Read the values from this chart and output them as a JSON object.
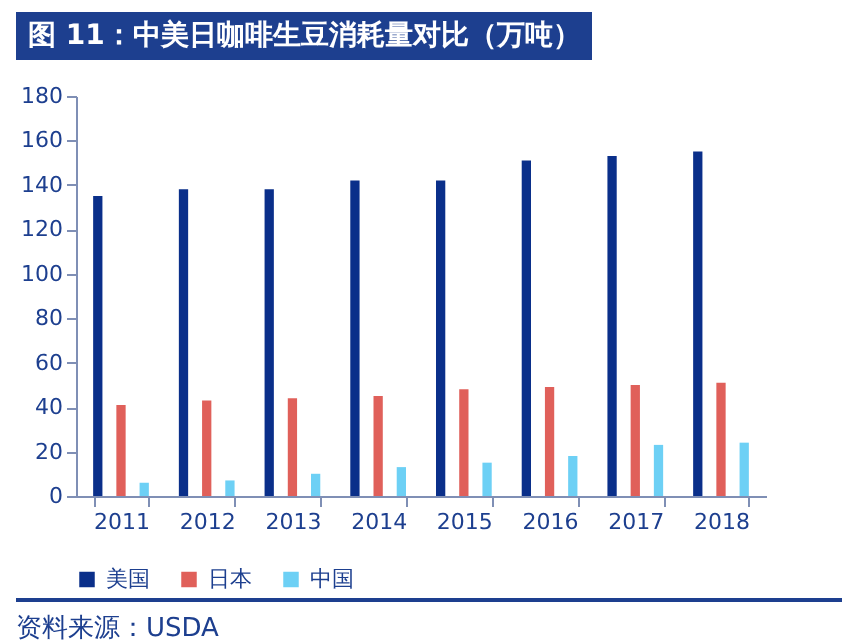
{
  "chart_data": {
    "type": "bar",
    "title": "图 11：中美日咖啡生豆消耗量对比（万吨）",
    "categories": [
      "2011",
      "2012",
      "2013",
      "2014",
      "2015",
      "2016",
      "2017",
      "2018"
    ],
    "series": [
      {
        "name": "美国",
        "color": "#0a2f8a",
        "values": [
          135,
          138,
          138,
          142,
          142,
          151,
          153,
          155
        ]
      },
      {
        "name": "日本",
        "color": "#e0605a",
        "values": [
          41,
          43,
          44,
          45,
          48,
          49,
          50,
          51
        ]
      },
      {
        "name": "中国",
        "color": "#6dd0f5",
        "values": [
          6,
          7,
          10,
          13,
          15,
          18,
          23,
          24
        ]
      }
    ],
    "ylim": [
      0,
      180
    ],
    "yticks": [
      0,
      20,
      40,
      60,
      80,
      100,
      120,
      140,
      160,
      180
    ],
    "legend": "bottom",
    "annotations": [
      "资料来源：USDA"
    ]
  }
}
